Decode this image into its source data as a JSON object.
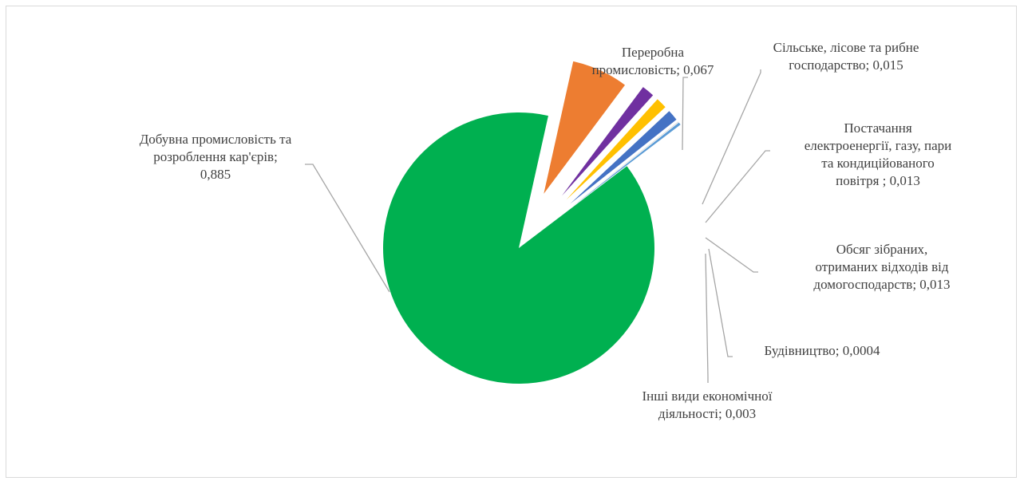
{
  "chart_data": {
    "type": "pie",
    "style": "exploded",
    "slices": [
      {
        "label": "Добувна промисловість та розроблення кар'єрів",
        "value": 0.885,
        "color": "#00b050",
        "label_lines": [
          "Добувна промисловість та",
          "розроблення кар'єрів;",
          "0,885"
        ]
      },
      {
        "label": "Переробна промисловість",
        "value": 0.067,
        "color": "#ed7d31",
        "label_lines": [
          "Переробна",
          "промисловість; 0,067"
        ]
      },
      {
        "label": "Сільське, лісове та рибне господарство",
        "value": 0.015,
        "color": "#7030a0",
        "label_lines": [
          "Сільське, лісове та рибне",
          "господарство; 0,015"
        ]
      },
      {
        "label": "Постачання електроенергії, газу, пари та кондиційованого повітря",
        "value": 0.013,
        "color": "#ffc000",
        "label_lines": [
          "Постачання",
          "електроенергії, газу, пари",
          "та кондиційованого",
          "повітря ; 0,013"
        ]
      },
      {
        "label": "Обсяг зібраних, отриманих відходів від домогосподарств",
        "value": 0.013,
        "color": "#4472c4",
        "label_lines": [
          "Обсяг зібраних,",
          "отриманих відходів  від",
          "домогосподарств; 0,013"
        ]
      },
      {
        "label": "Будівництво",
        "value": 0.0004,
        "color": "#a5a5a5",
        "label_lines": [
          "Будівництво; 0,0004"
        ]
      },
      {
        "label": "Інші види економічної діяльності",
        "value": 0.003,
        "color": "#5b9bd5",
        "label_lines": [
          "Інші види економічної",
          "діяльності; 0,003"
        ]
      }
    ],
    "legend": "none",
    "leader_lines": true
  }
}
